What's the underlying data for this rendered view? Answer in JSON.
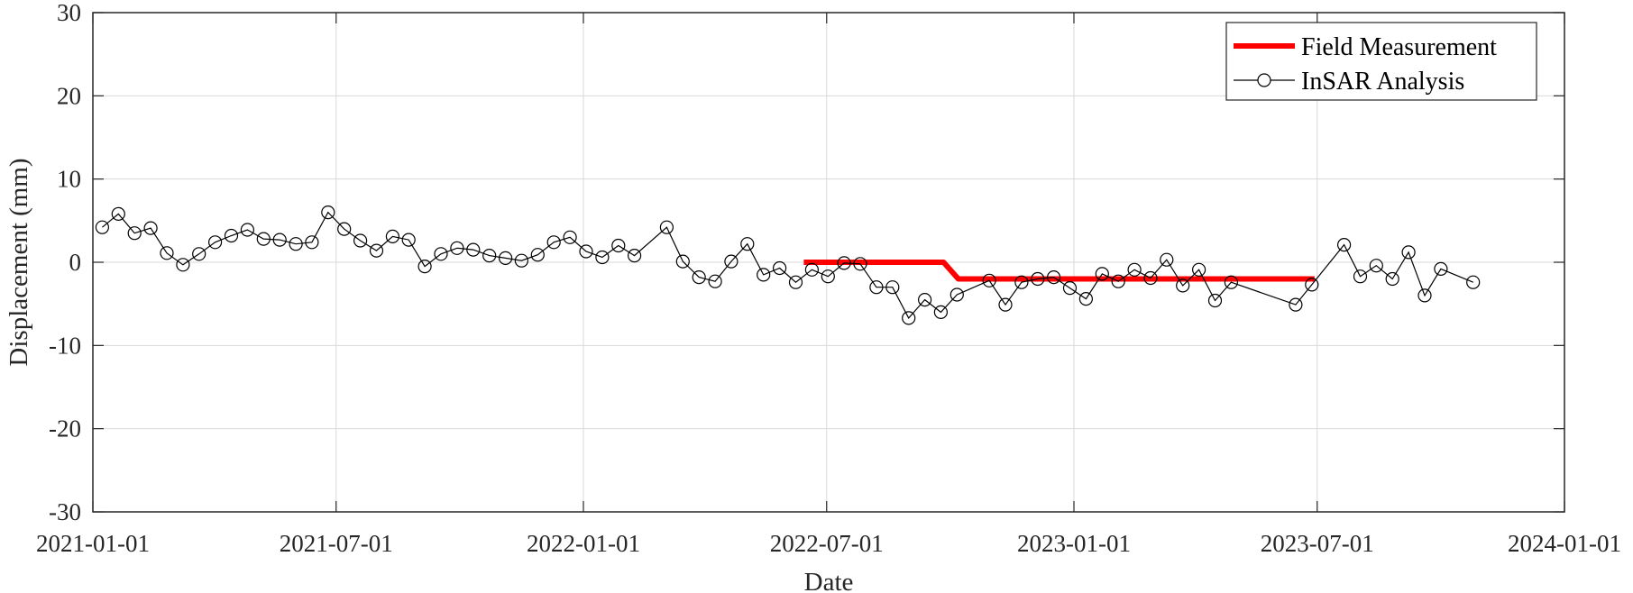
{
  "chart_data": {
    "type": "line",
    "title": "",
    "xlabel": "Date",
    "ylabel": "Displacement (mm)",
    "xlim": [
      "2021-01-01",
      "2024-01-01"
    ],
    "ylim": [
      -30,
      30
    ],
    "grid": true,
    "legend_position": "top-right",
    "x_tick_labels": [
      "2021-01-01",
      "2021-07-01",
      "2022-01-01",
      "2022-07-01",
      "2023-01-01",
      "2023-07-01",
      "2024-01-01"
    ],
    "y_ticks": [
      -30,
      -20,
      -10,
      0,
      10,
      20,
      30
    ],
    "y_tick_labels": [
      "-30",
      "-20",
      "-10",
      "0",
      "10",
      "20",
      "30"
    ],
    "colors": {
      "field": "#ff0000",
      "insar": "#000000",
      "grid": "#d9d9d9",
      "axis": "#262626"
    },
    "series": [
      {
        "name": "Field Measurement",
        "style": "thick-line",
        "points": [
          [
            "2022-06-14",
            0
          ],
          [
            "2022-09-26",
            0
          ],
          [
            "2022-10-07",
            -2
          ],
          [
            "2023-06-29",
            -2
          ]
        ]
      },
      {
        "name": "InSAR Analysis",
        "style": "line-circle",
        "points": [
          [
            "2021-01-08",
            4.2
          ],
          [
            "2021-01-20",
            5.8
          ],
          [
            "2021-02-01",
            3.5
          ],
          [
            "2021-02-13",
            4.1
          ],
          [
            "2021-02-25",
            1.1
          ],
          [
            "2021-03-09",
            -0.3
          ],
          [
            "2021-03-21",
            1.0
          ],
          [
            "2021-04-02",
            2.4
          ],
          [
            "2021-04-14",
            3.2
          ],
          [
            "2021-04-26",
            3.9
          ],
          [
            "2021-05-08",
            2.8
          ],
          [
            "2021-05-20",
            2.7
          ],
          [
            "2021-06-01",
            2.2
          ],
          [
            "2021-06-13",
            2.4
          ],
          [
            "2021-06-25",
            6.0
          ],
          [
            "2021-07-07",
            4.0
          ],
          [
            "2021-07-19",
            2.6
          ],
          [
            "2021-07-31",
            1.4
          ],
          [
            "2021-08-12",
            3.1
          ],
          [
            "2021-08-24",
            2.7
          ],
          [
            "2021-09-05",
            -0.5
          ],
          [
            "2021-09-17",
            1.0
          ],
          [
            "2021-09-29",
            1.7
          ],
          [
            "2021-10-11",
            1.5
          ],
          [
            "2021-10-23",
            0.8
          ],
          [
            "2021-11-04",
            0.5
          ],
          [
            "2021-11-16",
            0.2
          ],
          [
            "2021-11-28",
            0.9
          ],
          [
            "2021-12-10",
            2.4
          ],
          [
            "2021-12-22",
            3.0
          ],
          [
            "2022-01-03",
            1.3
          ],
          [
            "2022-01-15",
            0.6
          ],
          [
            "2022-01-27",
            2.0
          ],
          [
            "2022-02-08",
            0.8
          ],
          [
            "2022-03-04",
            4.2
          ],
          [
            "2022-03-16",
            0.1
          ],
          [
            "2022-03-28",
            -1.8
          ],
          [
            "2022-04-09",
            -2.3
          ],
          [
            "2022-04-21",
            0.1
          ],
          [
            "2022-05-03",
            2.2
          ],
          [
            "2022-05-15",
            -1.5
          ],
          [
            "2022-05-27",
            -0.7
          ],
          [
            "2022-06-08",
            -2.4
          ],
          [
            "2022-06-20",
            -0.9
          ],
          [
            "2022-07-02",
            -1.7
          ],
          [
            "2022-07-14",
            -0.1
          ],
          [
            "2022-07-26",
            -0.2
          ],
          [
            "2022-08-07",
            -3.0
          ],
          [
            "2022-08-19",
            -3.0
          ],
          [
            "2022-08-31",
            -6.7
          ],
          [
            "2022-09-12",
            -4.5
          ],
          [
            "2022-09-24",
            -6.0
          ],
          [
            "2022-10-06",
            -3.9
          ],
          [
            "2022-10-30",
            -2.2
          ],
          [
            "2022-11-11",
            -5.1
          ],
          [
            "2022-11-23",
            -2.4
          ],
          [
            "2022-12-05",
            -2.0
          ],
          [
            "2022-12-17",
            -1.8
          ],
          [
            "2022-12-29",
            -3.1
          ],
          [
            "2023-01-10",
            -4.4
          ],
          [
            "2023-01-22",
            -1.4
          ],
          [
            "2023-02-03",
            -2.3
          ],
          [
            "2023-02-15",
            -0.9
          ],
          [
            "2023-02-27",
            -1.9
          ],
          [
            "2023-03-11",
            0.3
          ],
          [
            "2023-03-23",
            -2.8
          ],
          [
            "2023-04-04",
            -0.9
          ],
          [
            "2023-04-16",
            -4.6
          ],
          [
            "2023-04-28",
            -2.4
          ],
          [
            "2023-06-15",
            -5.1
          ],
          [
            "2023-06-27",
            -2.7
          ],
          [
            "2023-07-21",
            2.1
          ],
          [
            "2023-08-02",
            -1.7
          ],
          [
            "2023-08-14",
            -0.4
          ],
          [
            "2023-08-26",
            -2.0
          ],
          [
            "2023-09-07",
            1.2
          ],
          [
            "2023-09-19",
            -4.0
          ],
          [
            "2023-10-01",
            -0.8
          ],
          [
            "2023-10-25",
            -2.4
          ]
        ]
      }
    ]
  }
}
